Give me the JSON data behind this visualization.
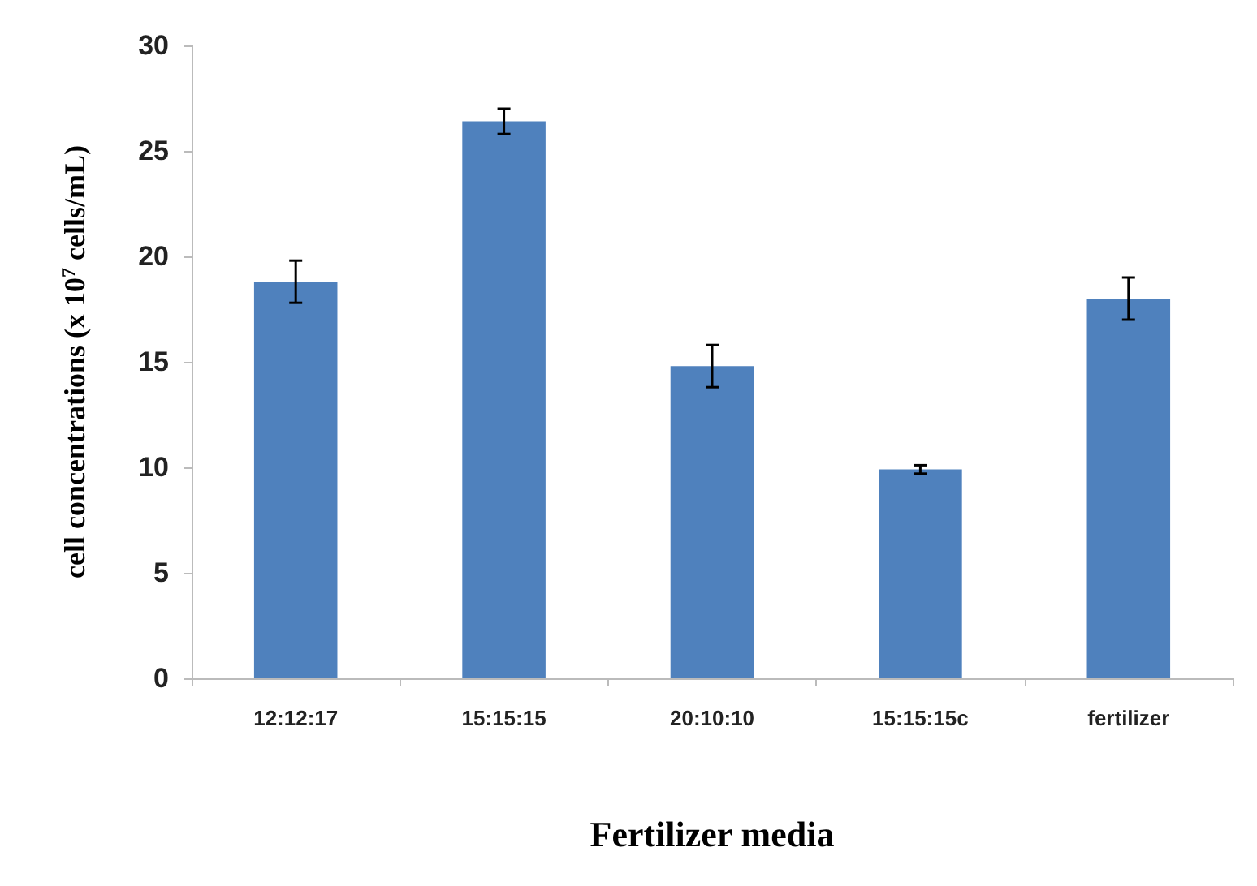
{
  "chart_data": {
    "type": "bar",
    "xlabel": "Fertilizer media",
    "ylabel": "cell concentrations (x 10$^{7}$ cells/mL)",
    "categories": [
      "12:12:17",
      "15:15:15",
      "20:10:10",
      "15:15:15c",
      "fertilizer"
    ],
    "values": [
      18.8,
      26.4,
      14.8,
      9.9,
      18.0
    ],
    "errors": [
      1.0,
      0.6,
      1.0,
      0.2,
      1.0
    ],
    "color": "#4f81bd",
    "ylim": [
      0,
      30
    ],
    "yticks": [
      0,
      5,
      10,
      15,
      20,
      25,
      30
    ],
    "grid": false
  }
}
